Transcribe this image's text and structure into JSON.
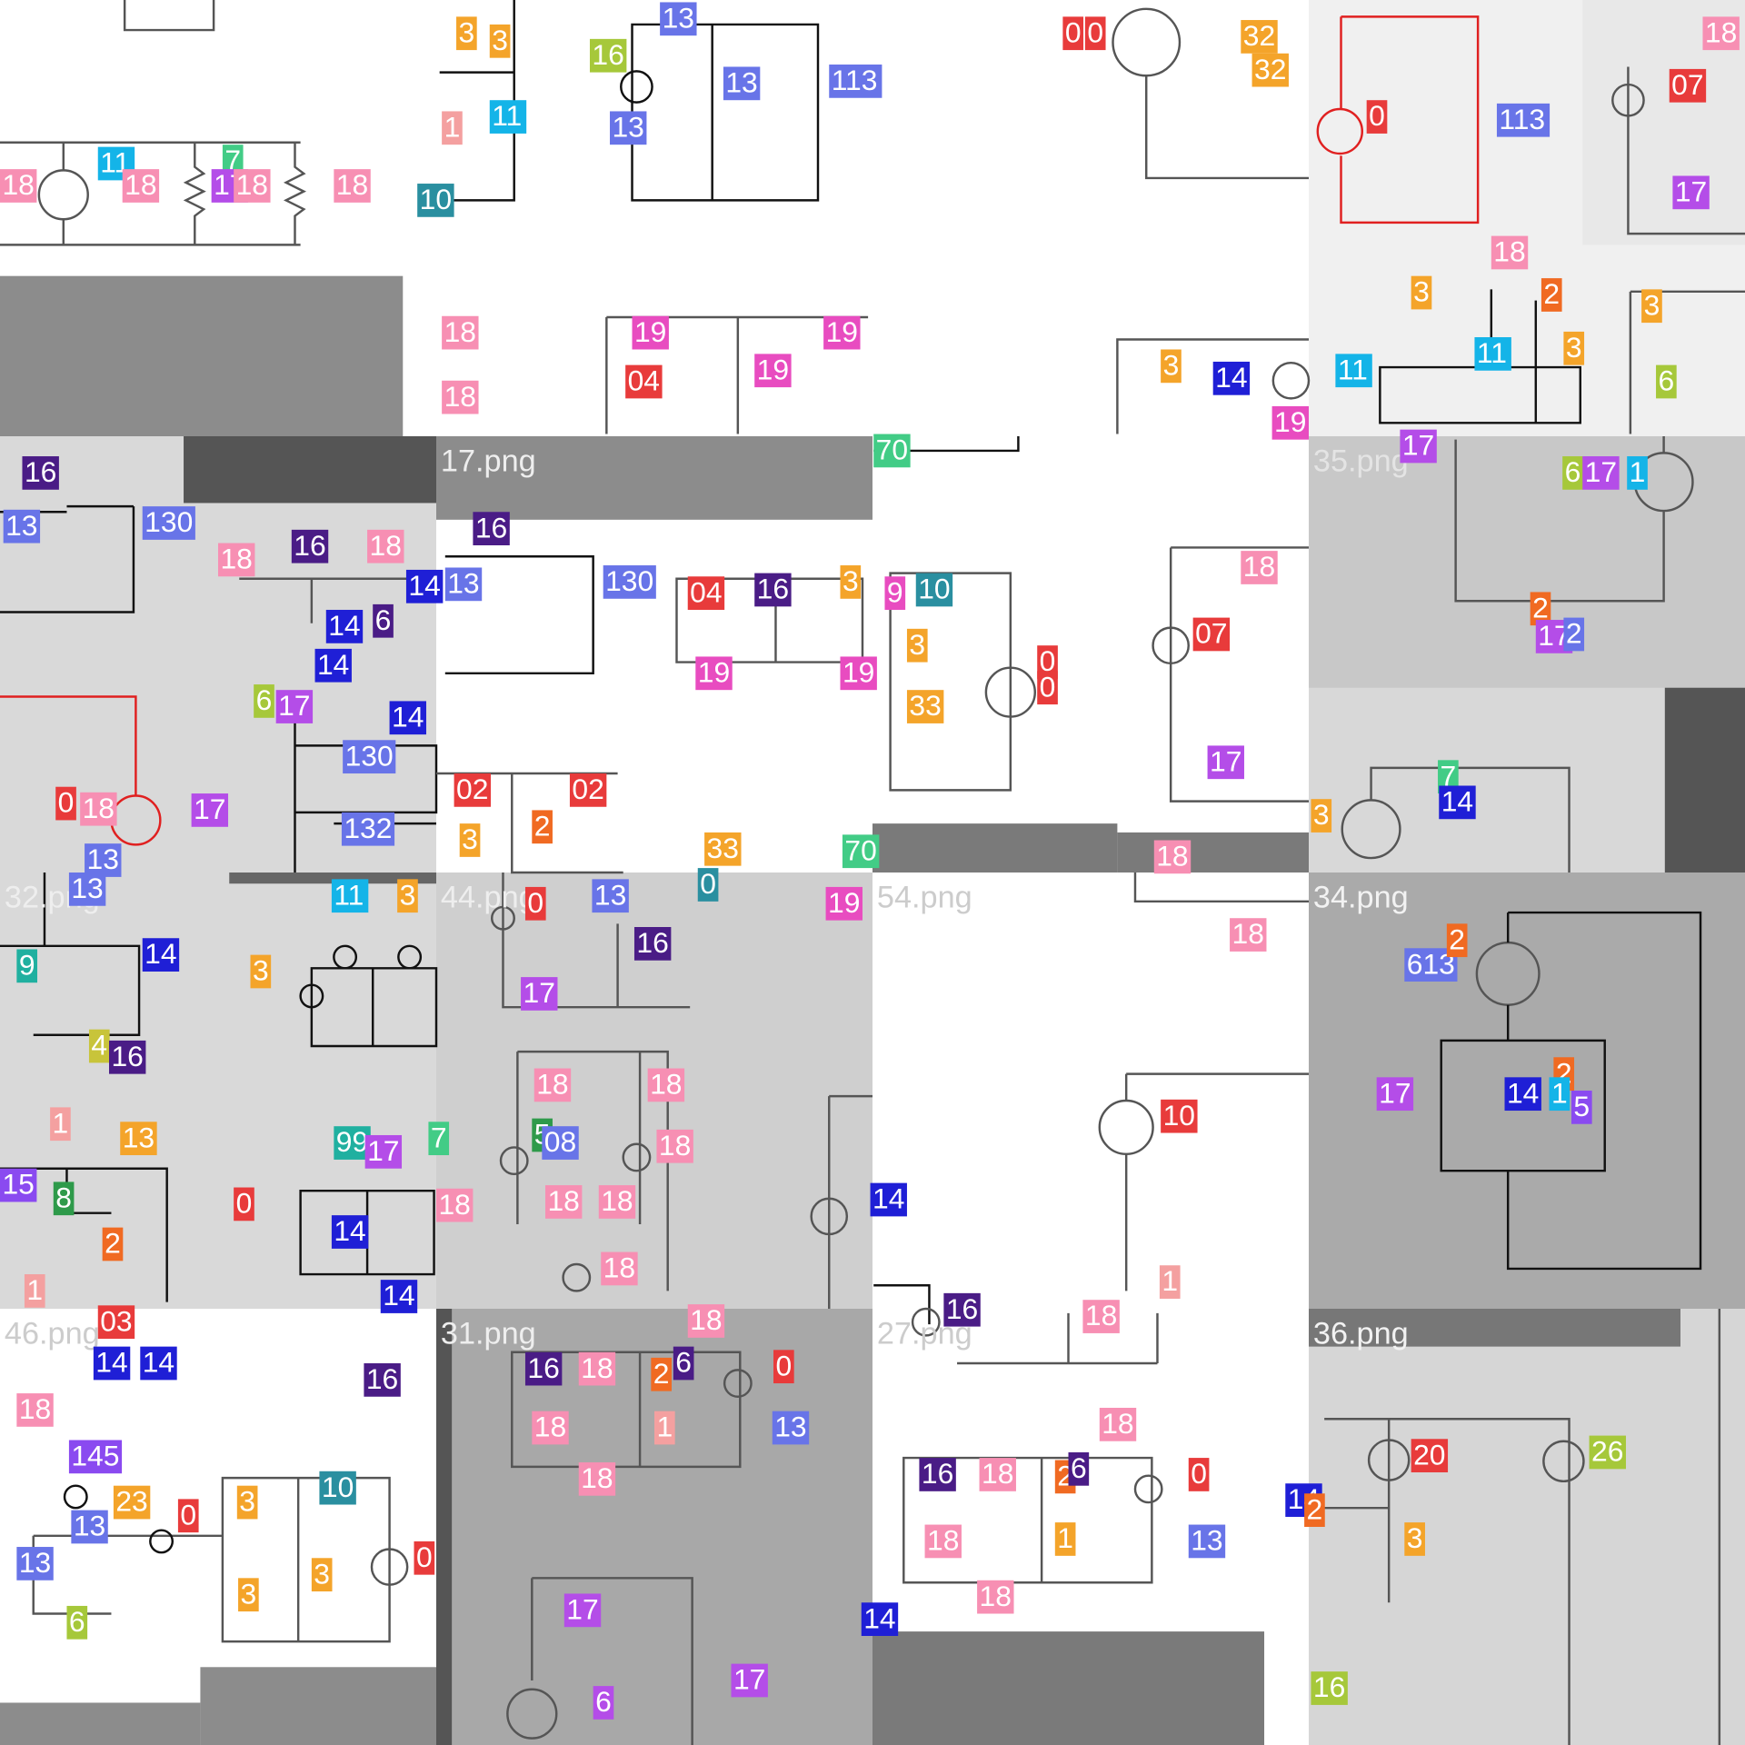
{
  "tiles": [
    {
      "labels": [
        {
          "text": "18",
          "color": "#f78fb3"
        },
        {
          "text": "11",
          "color": "#14b4e8"
        },
        {
          "text": "18",
          "color": "#f78fb3"
        },
        {
          "text": "7",
          "color": "#42cc86"
        },
        {
          "text": "17",
          "color": "#b44de8"
        },
        {
          "text": "18",
          "color": "#f78fb3"
        },
        {
          "text": "18",
          "color": "#f78fb3"
        }
      ]
    },
    {
      "labels": [
        {
          "text": "3",
          "color": "#f4a42a"
        },
        {
          "text": "3",
          "color": "#f4a42a"
        },
        {
          "text": "16",
          "color": "#a6c83a"
        },
        {
          "text": "13",
          "color": "#6874e8"
        },
        {
          "text": "13",
          "color": "#6874e8"
        },
        {
          "text": "113",
          "color": "#6874e8"
        },
        {
          "text": "11",
          "color": "#14b4e8"
        },
        {
          "text": "13",
          "color": "#6874e8"
        },
        {
          "text": "1",
          "color": "#f4a0a0"
        },
        {
          "text": "10",
          "color": "#2a8fa0"
        },
        {
          "text": "18",
          "color": "#f78fb3"
        },
        {
          "text": "18",
          "color": "#f78fb3"
        },
        {
          "text": "19",
          "color": "#e84cc0"
        },
        {
          "text": "19",
          "color": "#e84cc0"
        },
        {
          "text": "19",
          "color": "#e84cc0"
        },
        {
          "text": "04",
          "color": "#e83b3b"
        }
      ]
    },
    {
      "labels": [
        {
          "text": "0",
          "color": "#e83b3b"
        },
        {
          "text": "0",
          "color": "#e83b3b"
        },
        {
          "text": "32",
          "color": "#f4a42a"
        },
        {
          "text": "32",
          "color": "#f4a42a"
        },
        {
          "text": "3",
          "color": "#f4a42a"
        },
        {
          "text": "14",
          "color": "#1f1fd6"
        },
        {
          "text": "19",
          "color": "#e84cc0"
        }
      ]
    },
    {
      "labels": [
        {
          "text": "0",
          "color": "#e83b3b"
        },
        {
          "text": "113",
          "color": "#6874e8"
        },
        {
          "text": "18",
          "color": "#f78fb3"
        },
        {
          "text": "3",
          "color": "#f4a42a"
        },
        {
          "text": "2",
          "color": "#f06a22"
        },
        {
          "text": "11",
          "color": "#14b4e8"
        },
        {
          "text": "11",
          "color": "#14b4e8"
        },
        {
          "text": "3",
          "color": "#f4a42a"
        },
        {
          "text": "6",
          "color": "#a6c83a"
        },
        {
          "text": "3",
          "color": "#f4a42a"
        },
        {
          "text": "17",
          "color": "#b44de8"
        },
        {
          "text": "07",
          "color": "#e83b3b"
        },
        {
          "text": "18",
          "color": "#f78fb3"
        }
      ]
    },
    {
      "labels": [
        {
          "text": "16",
          "color": "#4a1c86"
        },
        {
          "text": "13",
          "color": "#6874e8"
        },
        {
          "text": "130",
          "color": "#6874e8"
        },
        {
          "text": "18",
          "color": "#f78fb3"
        },
        {
          "text": "16",
          "color": "#4a1c86"
        },
        {
          "text": "18",
          "color": "#f78fb3"
        },
        {
          "text": "14",
          "color": "#1f1fd6"
        },
        {
          "text": "14",
          "color": "#1f1fd6"
        },
        {
          "text": "6",
          "color": "#4a1c86"
        },
        {
          "text": "14",
          "color": "#1f1fd6"
        },
        {
          "text": "6",
          "color": "#a6c83a"
        },
        {
          "text": "17",
          "color": "#b44de8"
        },
        {
          "text": "14",
          "color": "#1f1fd6"
        },
        {
          "text": "130",
          "color": "#6874e8"
        },
        {
          "text": "0",
          "color": "#e83b3b"
        },
        {
          "text": "18",
          "color": "#f78fb3"
        },
        {
          "text": "17",
          "color": "#b44de8"
        },
        {
          "text": "132",
          "color": "#6874e8"
        },
        {
          "text": "13",
          "color": "#6874e8"
        }
      ]
    },
    {
      "title": "17.png",
      "labels": [
        {
          "text": "16",
          "color": "#4a1c86"
        },
        {
          "text": "13",
          "color": "#6874e8"
        },
        {
          "text": "130",
          "color": "#6874e8"
        },
        {
          "text": "04",
          "color": "#e83b3b"
        },
        {
          "text": "16",
          "color": "#4a1c86"
        },
        {
          "text": "3",
          "color": "#f4a42a"
        },
        {
          "text": "19",
          "color": "#e84cc0"
        },
        {
          "text": "19",
          "color": "#e84cc0"
        },
        {
          "text": "02",
          "color": "#e83b3b"
        },
        {
          "text": "02",
          "color": "#e83b3b"
        },
        {
          "text": "3",
          "color": "#f4a42a"
        },
        {
          "text": "2",
          "color": "#f06a22"
        },
        {
          "text": "33",
          "color": "#f4a42a"
        },
        {
          "text": "70",
          "color": "#42cc86"
        }
      ]
    },
    {
      "labels": [
        {
          "text": "70",
          "color": "#42cc86"
        },
        {
          "text": "9",
          "color": "#e84cc0"
        },
        {
          "text": "10",
          "color": "#2a8fa0"
        },
        {
          "text": "3",
          "color": "#f4a42a"
        },
        {
          "text": "33",
          "color": "#f4a42a"
        },
        {
          "text": "0",
          "color": "#e83b3b"
        },
        {
          "text": "0",
          "color": "#e83b3b"
        },
        {
          "text": "18",
          "color": "#f78fb3"
        },
        {
          "text": "07",
          "color": "#e83b3b"
        },
        {
          "text": "17",
          "color": "#b44de8"
        },
        {
          "text": "18",
          "color": "#f78fb3"
        }
      ]
    },
    {
      "title": "35.png",
      "labels": [
        {
          "text": "17",
          "color": "#b44de8"
        },
        {
          "text": "6",
          "color": "#a6c83a"
        },
        {
          "text": "17",
          "color": "#b44de8"
        },
        {
          "text": "1",
          "color": "#14b4e8"
        },
        {
          "text": "2",
          "color": "#f06a22"
        },
        {
          "text": "17",
          "color": "#b44de8"
        },
        {
          "text": "2",
          "color": "#6874e8"
        },
        {
          "text": "7",
          "color": "#42cc86"
        },
        {
          "text": "14",
          "color": "#1f1fd6"
        },
        {
          "text": "3",
          "color": "#f4a42a"
        }
      ]
    },
    {
      "title": "32.png",
      "labels": [
        {
          "text": "13",
          "color": "#6874e8"
        },
        {
          "text": "11",
          "color": "#14b4e8"
        },
        {
          "text": "3",
          "color": "#f4a42a"
        },
        {
          "text": "14",
          "color": "#1f1fd6"
        },
        {
          "text": "9",
          "color": "#20b0a0"
        },
        {
          "text": "3",
          "color": "#f4a42a"
        },
        {
          "text": "4",
          "color": "#c8c43a"
        },
        {
          "text": "16",
          "color": "#4a1c86"
        },
        {
          "text": "1",
          "color": "#f4a0a0"
        },
        {
          "text": "13",
          "color": "#f4a42a"
        },
        {
          "text": "15",
          "color": "#8a4af0"
        },
        {
          "text": "8",
          "color": "#2e9a4a"
        },
        {
          "text": "99",
          "color": "#20b0a0"
        },
        {
          "text": "17",
          "color": "#b44de8"
        },
        {
          "text": "2",
          "color": "#f06a22"
        },
        {
          "text": "0",
          "color": "#e83b3b"
        },
        {
          "text": "14",
          "color": "#1f1fd6"
        },
        {
          "text": "14",
          "color": "#1f1fd6"
        },
        {
          "text": "1",
          "color": "#f4a0a0"
        },
        {
          "text": "7",
          "color": "#42cc86"
        }
      ]
    },
    {
      "title": "44.png",
      "labels": [
        {
          "text": "0",
          "color": "#e83b3b"
        },
        {
          "text": "13",
          "color": "#6874e8"
        },
        {
          "text": "0",
          "color": "#2a8fa0"
        },
        {
          "text": "19",
          "color": "#e84cc0"
        },
        {
          "text": "16",
          "color": "#4a1c86"
        },
        {
          "text": "17",
          "color": "#b44de8"
        },
        {
          "text": "18",
          "color": "#f78fb3"
        },
        {
          "text": "18",
          "color": "#f78fb3"
        },
        {
          "text": "5",
          "color": "#2e9a4a"
        },
        {
          "text": "08",
          "color": "#6874e8"
        },
        {
          "text": "18",
          "color": "#f78fb3"
        },
        {
          "text": "18",
          "color": "#f78fb3"
        },
        {
          "text": "18",
          "color": "#f78fb3"
        },
        {
          "text": "18",
          "color": "#f78fb3"
        },
        {
          "text": "18",
          "color": "#f78fb3"
        },
        {
          "text": "14",
          "color": "#1f1fd6"
        }
      ]
    },
    {
      "title": "54.png",
      "labels": [
        {
          "text": "18",
          "color": "#f78fb3"
        },
        {
          "text": "10",
          "color": "#e83b3b"
        },
        {
          "text": "16",
          "color": "#4a1c86"
        },
        {
          "text": "18",
          "color": "#f78fb3"
        },
        {
          "text": "1",
          "color": "#f4a0a0"
        }
      ]
    },
    {
      "title": "34.png",
      "labels": [
        {
          "text": "613",
          "color": "#6874e8"
        },
        {
          "text": "2",
          "color": "#f06a22"
        },
        {
          "text": "17",
          "color": "#b44de8"
        },
        {
          "text": "2",
          "color": "#f06a22"
        },
        {
          "text": "14",
          "color": "#1f1fd6"
        },
        {
          "text": "1",
          "color": "#14b4e8"
        },
        {
          "text": "5",
          "color": "#8a4af0"
        }
      ]
    },
    {
      "title": "46.png",
      "labels": [
        {
          "text": "03",
          "color": "#e83b3b"
        },
        {
          "text": "14",
          "color": "#1f1fd6"
        },
        {
          "text": "14",
          "color": "#1f1fd6"
        },
        {
          "text": "16",
          "color": "#4a1c86"
        },
        {
          "text": "18",
          "color": "#f78fb3"
        },
        {
          "text": "145",
          "color": "#8a4af0"
        },
        {
          "text": "23",
          "color": "#f4a42a"
        },
        {
          "text": "13",
          "color": "#6874e8"
        },
        {
          "text": "13",
          "color": "#6874e8"
        },
        {
          "text": "0",
          "color": "#e83b3b"
        },
        {
          "text": "10",
          "color": "#2a8fa0"
        },
        {
          "text": "3",
          "color": "#f4a42a"
        },
        {
          "text": "3",
          "color": "#f4a42a"
        },
        {
          "text": "3",
          "color": "#f4a42a"
        },
        {
          "text": "6",
          "color": "#a6c83a"
        },
        {
          "text": "0",
          "color": "#e83b3b"
        }
      ]
    },
    {
      "title": "31.png",
      "labels": [
        {
          "text": "18",
          "color": "#f78fb3"
        },
        {
          "text": "16",
          "color": "#4a1c86"
        },
        {
          "text": "18",
          "color": "#f78fb3"
        },
        {
          "text": "2",
          "color": "#f06a22"
        },
        {
          "text": "6",
          "color": "#4a1c86"
        },
        {
          "text": "0",
          "color": "#e83b3b"
        },
        {
          "text": "18",
          "color": "#f78fb3"
        },
        {
          "text": "1",
          "color": "#f4a0a0"
        },
        {
          "text": "13",
          "color": "#6874e8"
        },
        {
          "text": "18",
          "color": "#f78fb3"
        },
        {
          "text": "17",
          "color": "#b44de8"
        },
        {
          "text": "6",
          "color": "#b44de8"
        },
        {
          "text": "17",
          "color": "#b44de8"
        },
        {
          "text": "14",
          "color": "#1f1fd6"
        }
      ]
    },
    {
      "title": "27.png",
      "labels": [
        {
          "text": "16",
          "color": "#4a1c86"
        },
        {
          "text": "18",
          "color": "#f78fb3"
        },
        {
          "text": "2",
          "color": "#f06a22"
        },
        {
          "text": "6",
          "color": "#4a1c86"
        },
        {
          "text": "18",
          "color": "#f78fb3"
        },
        {
          "text": "0",
          "color": "#e83b3b"
        },
        {
          "text": "18",
          "color": "#f78fb3"
        },
        {
          "text": "1",
          "color": "#f4a42a"
        },
        {
          "text": "13",
          "color": "#6874e8"
        },
        {
          "text": "18",
          "color": "#f78fb3"
        },
        {
          "text": "14",
          "color": "#1f1fd6"
        },
        {
          "text": "2",
          "color": "#f06a22"
        }
      ]
    },
    {
      "title": "36.png",
      "labels": [
        {
          "text": "20",
          "color": "#e83b3b"
        },
        {
          "text": "26",
          "color": "#a6c83a"
        },
        {
          "text": "3",
          "color": "#f4a42a"
        },
        {
          "text": "16",
          "color": "#a6c83a"
        }
      ]
    }
  ]
}
